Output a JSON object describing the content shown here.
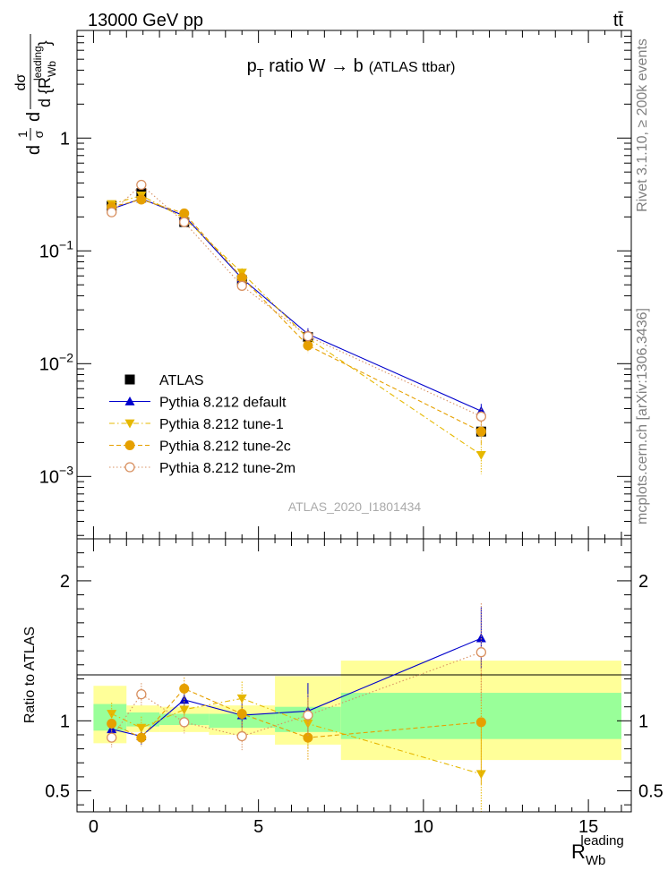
{
  "header": {
    "left": "13000 GeV pp",
    "right": "tt̄"
  },
  "side_labels": {
    "upper": "Rivet 3.1.10, ≥ 200k events",
    "lower": "mcplots.cern.ch [arXiv:1306.3436]"
  },
  "chart_data": [
    {
      "type": "line",
      "title": "p_T ratio W → b (ATLAS ttbar)",
      "title_parts": {
        "main": "p",
        "sub": "T",
        "rest": " ratio W → b",
        "paren": "(ATLAS ttbar)"
      },
      "watermark": "ATLAS_2020_I1801434",
      "ylabel": "d¹/σ dσ/d{R_Wb^leading}",
      "ylabel_parts": {
        "frac1_num": "1",
        "frac1_den": "σ",
        "prefix": "d",
        "frac2_num": "dσ",
        "frac2_den": "d {R",
        "sub": "Wb",
        "sup": "leading",
        "close": "}"
      },
      "yscale": "log",
      "xlim": [
        -0.5,
        16.3
      ],
      "ylim": [
        0.00028,
        9
      ],
      "y_tick_labels": [
        {
          "value": 1,
          "base": "1",
          "exp": ""
        },
        {
          "value": 0.1,
          "base": "10",
          "exp": "−1"
        },
        {
          "value": 0.01,
          "base": "10",
          "exp": "−2"
        },
        {
          "value": 0.001,
          "base": "10",
          "exp": "−3"
        }
      ],
      "legend_position": "bottom-left",
      "x_bins": [
        [
          0,
          1
        ],
        [
          1,
          2
        ],
        [
          2,
          3.5
        ],
        [
          3.5,
          5.5
        ],
        [
          5.5,
          7.5
        ],
        [
          7.5,
          16
        ]
      ],
      "series": [
        {
          "name": "ATLAS",
          "color": "#000000",
          "marker": "square",
          "line": "none",
          "x": [
            0.55,
            1.45,
            2.75,
            4.5,
            6.5,
            11.75
          ],
          "y": [
            0.25,
            0.325,
            0.18,
            0.055,
            0.0172,
            0.0025
          ],
          "err": [
            0.018,
            0.022,
            0.012,
            0.004,
            0.0014,
            0.0002
          ]
        },
        {
          "name": "Pythia 8.212 default",
          "color": "#0000cc",
          "marker": "triangle-up",
          "line": "solid",
          "x": [
            0.55,
            1.45,
            2.75,
            4.5,
            6.5,
            11.75
          ],
          "y": [
            0.235,
            0.29,
            0.205,
            0.057,
            0.0183,
            0.0038
          ],
          "err": [
            0.016,
            0.02,
            0.014,
            0.005,
            0.0023,
            0.0006
          ]
        },
        {
          "name": "Pythia 8.212 tune-1",
          "color": "#e6b800",
          "marker": "triangle-down",
          "line": "dashdot",
          "x": [
            0.55,
            1.45,
            2.75,
            4.5,
            6.5,
            11.75
          ],
          "y": [
            0.26,
            0.31,
            0.195,
            0.064,
            0.0168,
            0.00155
          ],
          "err": [
            0.02,
            0.024,
            0.015,
            0.006,
            0.0025,
            0.0005
          ]
        },
        {
          "name": "Pythia 8.212 tune-2c",
          "color": "#e6a000",
          "marker": "circle",
          "line": "dashed",
          "x": [
            0.55,
            1.45,
            2.75,
            4.5,
            6.5,
            11.75
          ],
          "y": [
            0.245,
            0.285,
            0.215,
            0.058,
            0.0145,
            0.0025
          ],
          "err": [
            0.018,
            0.02,
            0.015,
            0.006,
            0.002,
            0.0006
          ]
        },
        {
          "name": "Pythia 8.212 tune-2m",
          "color": "#d89060",
          "marker": "circle-open",
          "line": "dotted",
          "x": [
            0.55,
            1.45,
            2.75,
            4.5,
            6.5,
            11.75
          ],
          "y": [
            0.22,
            0.385,
            0.18,
            0.049,
            0.0175,
            0.0034
          ],
          "err": [
            0.017,
            0.026,
            0.014,
            0.005,
            0.0025,
            0.0006
          ]
        }
      ]
    },
    {
      "type": "line",
      "ylabel": "Ratio to ATLAS",
      "xlabel_parts": {
        "main": "R",
        "sub": "Wb",
        "sup": "leading"
      },
      "xlim": [
        -0.5,
        16.3
      ],
      "ylim": [
        0.35,
        2.3
      ],
      "x_ticks": [
        0,
        5,
        10,
        15
      ],
      "y_ticks": [
        0.5,
        1,
        2
      ],
      "y_tick_labels": [
        "0.5",
        "1",
        "2"
      ],
      "bands": {
        "inner_color": "#99ff99",
        "outer_color": "#ffff99",
        "bins": [
          [
            0,
            1
          ],
          [
            1,
            2
          ],
          [
            2,
            3.5
          ],
          [
            3.5,
            5.5
          ],
          [
            5.5,
            7.5
          ],
          [
            7.5,
            16
          ]
        ],
        "inner": [
          [
            0.93,
            1.12
          ],
          [
            0.96,
            1.06
          ],
          [
            0.97,
            1.05
          ],
          [
            0.95,
            1.05
          ],
          [
            0.92,
            1.1
          ],
          [
            0.87,
            1.2
          ]
        ],
        "outer": [
          [
            0.84,
            1.25
          ],
          [
            0.92,
            1.11
          ],
          [
            0.92,
            1.1
          ],
          [
            0.9,
            1.11
          ],
          [
            0.83,
            1.32
          ],
          [
            0.72,
            1.43
          ]
        ]
      },
      "series": [
        {
          "name": "Pythia 8.212 default",
          "x": [
            0.55,
            1.45,
            2.75,
            4.5,
            6.5,
            11.75
          ],
          "y": [
            0.94,
            0.89,
            1.15,
            1.04,
            1.07,
            1.59
          ],
          "err": [
            0.06,
            0.06,
            0.07,
            0.09,
            0.2,
            0.22
          ]
        },
        {
          "name": "Pythia 8.212 tune-1",
          "x": [
            0.55,
            1.45,
            2.75,
            4.5,
            6.5,
            11.75
          ],
          "y": [
            1.05,
            0.95,
            1.08,
            1.16,
            0.98,
            0.62
          ],
          "err": [
            0.08,
            0.08,
            0.08,
            0.12,
            0.18,
            0.35
          ]
        },
        {
          "name": "Pythia 8.212 tune-2c",
          "x": [
            0.55,
            1.45,
            2.75,
            4.5,
            6.5,
            11.75
          ],
          "y": [
            0.98,
            0.88,
            1.23,
            1.05,
            0.88,
            0.99
          ],
          "err": [
            0.07,
            0.06,
            0.08,
            0.12,
            0.16,
            0.45
          ]
        },
        {
          "name": "Pythia 8.212 tune-2m",
          "x": [
            0.55,
            1.45,
            2.75,
            4.5,
            6.5,
            11.75
          ],
          "y": [
            0.88,
            1.19,
            0.99,
            0.89,
            1.04,
            1.49
          ],
          "err": [
            0.07,
            0.08,
            0.08,
            0.1,
            0.15,
            0.35
          ]
        }
      ]
    }
  ]
}
